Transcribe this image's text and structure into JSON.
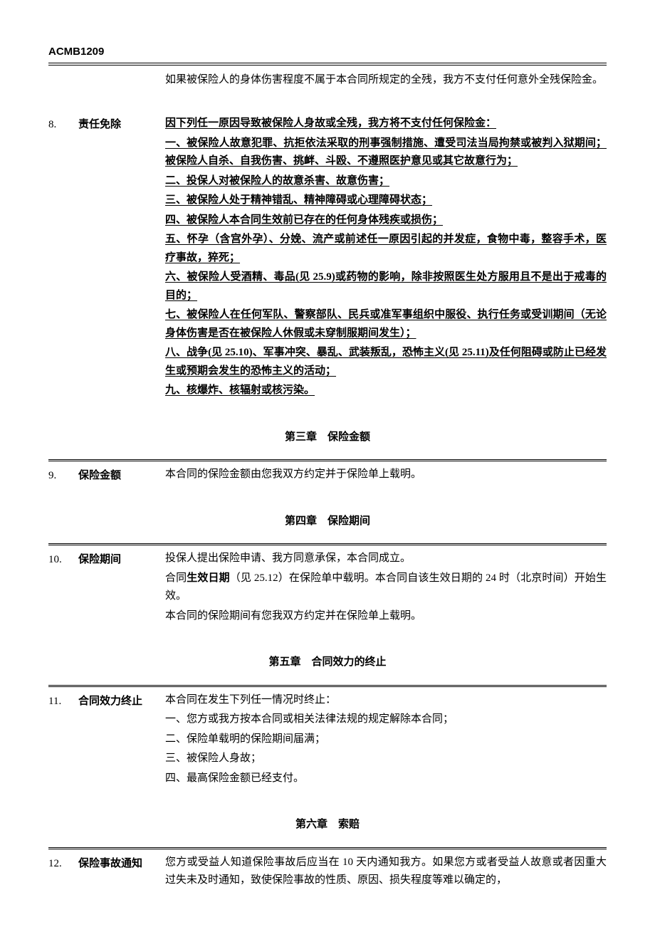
{
  "header_code": "ACMB1209",
  "intro_continuation": "如果被保险人的身体伤害程度不属于本合同所规定的全残，我方不支付任何意外全残保险金。",
  "clause8": {
    "num": "8.",
    "label": "责任免除",
    "lead": "因下列任一原因导致被保险人身故或全残，我方将不支付任何保险金：",
    "items": [
      "一、被保险人故意犯罪、抗拒依法采取的刑事强制措施、遭受司法当局拘禁或被判入狱期间；被保险人自杀、自我伤害、挑衅、斗殴、不遵照医护意见或其它故意行为；",
      "二、投保人对被保险人的故意杀害、故意伤害；",
      "三、被保险人处于精神错乱、精神障碍或心理障碍状态；",
      "四、被保险人本合同生效前已存在的任何身体残疾或损伤；",
      "五、怀孕（含宫外孕）、分娩、流产或前述任一原因引起的并发症，食物中毒，整容手术，医疗事故，猝死；",
      "六、被保险人受酒精、毒品(见 25.9)或药物的影响，除非按照医生处方服用且不是出于戒毒的目的；",
      "七、被保险人在任何军队、警察部队、民兵或准军事组织中服役、执行任务或受训期间（无论身体伤害是否在被保险人休假或未穿制服期间发生）；",
      "八、战争(见 25.10)、军事冲突、暴乱、武装叛乱，恐怖主义(见 25.11)及任何阻碍或防止已经发生或预期会发生的恐怖主义的活动；",
      "九、核爆炸、核辐射或核污染。"
    ]
  },
  "chapter3_title": "第三章　保险金额",
  "clause9": {
    "num": "9.",
    "label": "保险金额",
    "body": "本合同的保险金额由您我双方约定并于保险单上载明。"
  },
  "chapter4_title": "第四章　保险期间",
  "clause10": {
    "num": "10.",
    "label": "保险期间",
    "p1": "投保人提出保险申请、我方同意承保，本合同成立。",
    "p2_pre": "合同",
    "p2_bold": "生效日期",
    "p2_post": "（见 25.12）在保险单中载明。本合同自该生效日期的 24 时（北京时间）开始生效。",
    "p3": "本合同的保险期间有您我双方约定并在保险单上载明。"
  },
  "chapter5_title": "第五章　合同效力的终止",
  "clause11": {
    "num": "11.",
    "label": "合同效力终止",
    "lead": "本合同在发生下列任一情况时终止：",
    "items": [
      "一、您方或我方按本合同或相关法律法规的规定解除本合同；",
      "二、保险单载明的保险期间届满；",
      "三、被保险人身故；",
      "四、最高保险金额已经支付。"
    ]
  },
  "chapter6_title": "第六章　索赔",
  "clause12": {
    "num": "12.",
    "label": "保险事故通知",
    "body": "您方或受益人知道保险事故后应当在 10 天内通知我方。如果您方或者受益人故意或者因重大过失未及时通知，致使保险事故的性质、原因、损失程度等难以确定的，"
  }
}
